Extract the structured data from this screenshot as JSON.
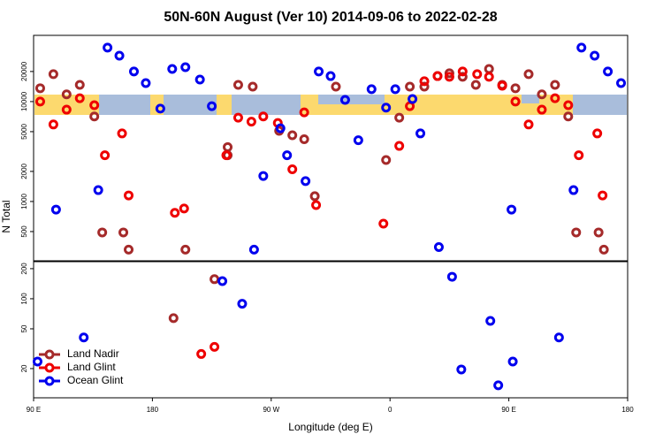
{
  "chart_data": [
    {
      "type": "scatter",
      "title": "50N-60N August (Ver 10)   2014-09-06 to 2022-02-28",
      "ylabel": "N Total",
      "log_y": true,
      "xlim": [
        90,
        540
      ],
      "ylim": [
        255,
        46000
      ],
      "yticks": [
        500,
        1000,
        2000,
        5000,
        10000,
        20000
      ],
      "series": [
        {
          "color": "#a52a2a",
          "x": [
            95,
            105,
            115,
            125,
            136,
            142,
            158,
            162,
            205,
            237,
            237,
            245,
            256,
            276,
            286,
            295,
            303,
            319,
            357,
            367,
            375,
            386,
            396,
            405,
            415,
            425,
            435,
            445,
            455,
            465,
            475,
            485,
            495,
            501,
            518,
            522
          ],
          "values": [
            13600,
            18800,
            11800,
            14700,
            7100,
            490,
            490,
            330,
            330,
            3500,
            2900,
            14700,
            14100,
            5100,
            4600,
            4200,
            1130,
            14100,
            2600,
            6900,
            14100,
            14100,
            18000,
            19200,
            17700,
            14700,
            21200,
            14700,
            13600,
            18800,
            11800,
            14700,
            7100,
            490,
            490,
            330
          ]
        },
        {
          "color": "#ee0000",
          "x": [
            95,
            105,
            115,
            125,
            136,
            144,
            157,
            162,
            197,
            204,
            236,
            245,
            255,
            264,
            275,
            286,
            295,
            304,
            355,
            367,
            375,
            386,
            396,
            405,
            415,
            426,
            435,
            445,
            455,
            465,
            475,
            485,
            495,
            503,
            517,
            521
          ],
          "values": [
            10000,
            5900,
            8300,
            10800,
            9200,
            2900,
            4800,
            1150,
            770,
            850,
            2900,
            6900,
            6300,
            7100,
            6100,
            2100,
            7800,
            920,
            600,
            3600,
            9000,
            16000,
            18000,
            17700,
            20000,
            18800,
            17700,
            14400,
            10000,
            5900,
            8300,
            10800,
            9200,
            2900,
            4800,
            1150
          ]
        },
        {
          "color": "#0000ee",
          "x": [
            107,
            139,
            146,
            155,
            166,
            175,
            186,
            195,
            205,
            216,
            225,
            257,
            264,
            277,
            282,
            296,
            306,
            315,
            326,
            336,
            346,
            357,
            364,
            377,
            383,
            397,
            452,
            499,
            505,
            515,
            525,
            535
          ],
          "values": [
            830,
            1300,
            34700,
            28800,
            20000,
            15300,
            8500,
            21200,
            22100,
            16600,
            9000,
            330,
            1800,
            5400,
            2900,
            1600,
            20000,
            18000,
            10400,
            4100,
            13300,
            8700,
            13300,
            10600,
            4800,
            350,
            830,
            1300,
            34700,
            28800,
            20000,
            15300
          ]
        }
      ]
    },
    {
      "type": "scatter",
      "xlabel": "Longitude (deg E)",
      "log_y": true,
      "xlim": [
        90,
        540
      ],
      "xticks": [
        {
          "value": 90,
          "label": "90 E"
        },
        180,
        {
          "value": 270,
          "label": "90 W"
        },
        {
          "value": 360,
          "label": "0"
        },
        {
          "value": 450,
          "label": "90 E"
        },
        {
          "value": 540,
          "label": "180"
        }
      ],
      "ylim": [
        10.2,
        235
      ],
      "yticks": [
        20,
        50,
        100,
        200
      ],
      "legend": "lower left",
      "series": [
        {
          "name": "Land Nadir",
          "color": "#a52a2a",
          "x": [
            196,
            227
          ],
          "values": [
            64,
            157
          ]
        },
        {
          "name": "Land Glint",
          "color": "#ee0000",
          "x": [
            217,
            227
          ],
          "values": [
            28,
            33
          ]
        },
        {
          "name": "Ocean Glint",
          "color": "#0000ee",
          "x": [
            93,
            128,
            233,
            248,
            407,
            414,
            436,
            442,
            453,
            488
          ],
          "values": [
            23.5,
            41,
            150,
            89,
            166,
            19.6,
            60,
            13.6,
            23.5,
            41
          ]
        }
      ]
    }
  ]
}
